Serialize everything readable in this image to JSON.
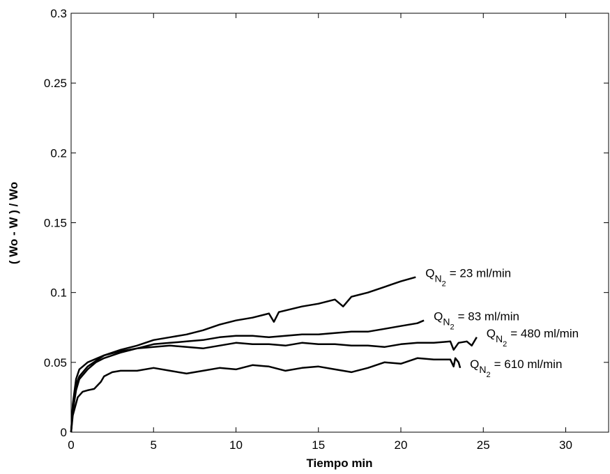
{
  "chart_data": {
    "type": "line",
    "xlabel": "Tiempo min",
    "ylabel": "( Wo - W ) / Wo",
    "xlim": [
      0,
      32.6
    ],
    "xticks": [
      0,
      5,
      10,
      15,
      20,
      25,
      30
    ],
    "ylim": [
      0,
      0.3
    ],
    "yticks": [
      0,
      0.05,
      0.1,
      0.15,
      0.2,
      0.25,
      0.3
    ],
    "color": "#000000",
    "series": [
      {
        "label_parts": [
          "Q",
          "N",
          "2",
          "= 23 ml/min"
        ],
        "x": [
          0,
          0.1,
          0.3,
          0.5,
          1,
          2,
          3,
          4,
          5,
          6,
          7,
          8,
          9,
          10,
          11,
          12,
          12.3,
          12.6,
          14,
          15,
          16,
          16.5,
          17,
          18,
          19,
          19.5,
          20,
          20.9
        ],
        "values": [
          0,
          0.02,
          0.038,
          0.045,
          0.05,
          0.055,
          0.059,
          0.062,
          0.066,
          0.068,
          0.07,
          0.073,
          0.077,
          0.08,
          0.082,
          0.085,
          0.079,
          0.086,
          0.09,
          0.092,
          0.095,
          0.09,
          0.097,
          0.1,
          0.104,
          0.106,
          0.108,
          0.111
        ]
      },
      {
        "label_parts": [
          "Q",
          "N",
          "2",
          "= 83 ml/min"
        ],
        "x": [
          0,
          0.1,
          0.3,
          0.5,
          1,
          2,
          3,
          4,
          5,
          6,
          7,
          8,
          9,
          10,
          11,
          12,
          13,
          14,
          15,
          16,
          17,
          18,
          19,
          20,
          21,
          21.4
        ],
        "values": [
          0,
          0.018,
          0.034,
          0.04,
          0.047,
          0.055,
          0.058,
          0.06,
          0.063,
          0.064,
          0.065,
          0.066,
          0.068,
          0.069,
          0.069,
          0.068,
          0.069,
          0.07,
          0.07,
          0.071,
          0.072,
          0.072,
          0.074,
          0.076,
          0.078,
          0.08
        ]
      },
      {
        "label_parts": [
          "Q",
          "N",
          "2",
          "= 480 ml/min"
        ],
        "x": [
          0,
          0.1,
          0.3,
          0.5,
          1,
          1.5,
          2,
          3,
          4,
          5,
          6,
          7,
          8,
          9,
          10,
          11,
          12,
          13,
          14,
          15,
          16,
          17,
          18,
          19,
          20,
          21,
          22,
          23,
          23.2,
          23.5,
          24,
          24.3,
          24.6
        ],
        "values": [
          0,
          0.015,
          0.03,
          0.038,
          0.045,
          0.05,
          0.053,
          0.057,
          0.06,
          0.061,
          0.062,
          0.061,
          0.06,
          0.062,
          0.064,
          0.063,
          0.063,
          0.062,
          0.064,
          0.063,
          0.063,
          0.062,
          0.062,
          0.061,
          0.063,
          0.064,
          0.064,
          0.065,
          0.059,
          0.064,
          0.065,
          0.062,
          0.068
        ]
      },
      {
        "label_parts": [
          "Q",
          "N",
          "2",
          "= 610 ml/min"
        ],
        "x": [
          0,
          0.1,
          0.4,
          0.7,
          1,
          1.4,
          1.8,
          2,
          2.5,
          3,
          4,
          5,
          6,
          7,
          8,
          9,
          10,
          11,
          12,
          13,
          14,
          15,
          16,
          17,
          18,
          19,
          20,
          21,
          22,
          23,
          23.2,
          23.3,
          23.5,
          23.6
        ],
        "values": [
          0,
          0.012,
          0.025,
          0.029,
          0.03,
          0.031,
          0.036,
          0.04,
          0.043,
          0.044,
          0.044,
          0.046,
          0.044,
          0.042,
          0.044,
          0.046,
          0.045,
          0.048,
          0.047,
          0.044,
          0.046,
          0.047,
          0.045,
          0.043,
          0.046,
          0.05,
          0.049,
          0.053,
          0.052,
          0.052,
          0.047,
          0.053,
          0.05,
          0.046
        ]
      }
    ]
  }
}
